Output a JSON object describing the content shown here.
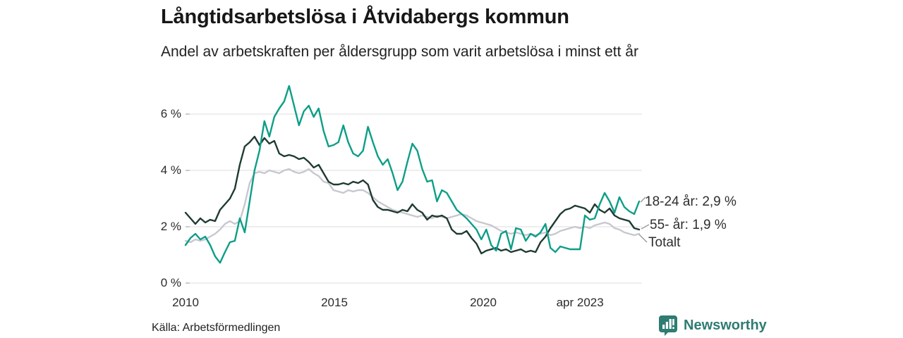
{
  "header": {
    "title": "Långtidsarbetslösa i Åtvidabergs kommun",
    "subtitle": "Andel av arbetskraften per åldersgrupp som varit arbetslösa i minst ett år"
  },
  "footer": {
    "source": "Källa: Arbetsförmedlingen",
    "brand": "Newsworthy"
  },
  "colors": {
    "teal": "#0d9e87",
    "dark": "#1e3a30",
    "gray": "#c7c7cf",
    "brand": "#2e7c72",
    "grid": "#e3e3e3",
    "grid_tick": "#b5b5b5",
    "leader": "#9a9a9a",
    "text": "#2b2b2b"
  },
  "chart_data": {
    "type": "line",
    "title": "Långtidsarbetslösa i Åtvidabergs kommun",
    "subtitle": "Andel av arbetskraften per åldersgrupp som varit arbetslösa i minst ett år",
    "xlabel": "",
    "ylabel": "",
    "x_start": 2008.0,
    "x_step_years": 0.1667,
    "x_end": 2023.33,
    "x_tick_positions": [
      2010,
      2015,
      2020,
      2023.25
    ],
    "x_tick_labels": [
      "2010",
      "2015",
      "2020",
      "apr 2023"
    ],
    "y_ticks": [
      0,
      2,
      4,
      6
    ],
    "y_tick_labels": [
      "0 %",
      "2 %",
      "4 %",
      "6 %"
    ],
    "ylim": [
      0,
      7.3
    ],
    "grid": "horizontal",
    "legend_position": "right-of-line-ends",
    "series": [
      {
        "name": "18-24 år",
        "end_label": "18-24 år: 2,9 %",
        "end_value": 2.9,
        "color_key": "teal",
        "values": [
          1.35,
          1.6,
          1.75,
          1.55,
          1.65,
          1.35,
          0.95,
          0.72,
          1.1,
          1.45,
          1.5,
          2.3,
          1.8,
          2.9,
          4.0,
          4.7,
          5.75,
          5.2,
          5.9,
          6.2,
          6.45,
          7.0,
          6.3,
          5.6,
          6.1,
          6.3,
          5.9,
          6.2,
          5.4,
          4.85,
          4.9,
          5.0,
          5.6,
          5.0,
          4.6,
          4.5,
          4.7,
          5.55,
          5.0,
          4.5,
          4.2,
          4.4,
          3.9,
          3.3,
          3.6,
          4.3,
          4.95,
          4.7,
          4.05,
          3.6,
          3.65,
          2.9,
          3.3,
          3.2,
          2.9,
          2.6,
          2.45,
          2.3,
          2.1,
          1.9,
          1.55,
          1.9,
          1.35,
          1.15,
          1.75,
          1.85,
          1.2,
          1.95,
          1.9,
          1.5,
          1.75,
          1.65,
          1.8,
          2.1,
          1.25,
          1.1,
          1.3,
          1.25,
          1.2,
          1.2,
          1.2,
          2.4,
          2.25,
          2.3,
          2.8,
          3.2,
          2.9,
          2.5,
          3.05,
          2.7,
          2.55,
          2.45,
          2.9
        ]
      },
      {
        "name": "55- år",
        "end_label": "55- år: 1,9 %",
        "end_value": 1.9,
        "color_key": "dark",
        "values": [
          2.5,
          2.3,
          2.1,
          2.3,
          2.15,
          2.25,
          2.2,
          2.6,
          2.8,
          3.0,
          3.35,
          4.2,
          4.85,
          5.0,
          5.2,
          4.9,
          5.15,
          4.95,
          5.05,
          4.6,
          4.5,
          4.55,
          4.5,
          4.4,
          4.45,
          4.3,
          4.1,
          4.2,
          3.9,
          3.6,
          3.5,
          3.5,
          3.55,
          3.5,
          3.6,
          3.55,
          3.65,
          3.5,
          2.95,
          2.7,
          2.6,
          2.6,
          2.55,
          2.5,
          2.6,
          2.55,
          2.8,
          2.6,
          2.5,
          2.25,
          2.4,
          2.35,
          2.4,
          2.3,
          1.9,
          1.75,
          1.75,
          1.85,
          1.6,
          1.4,
          1.05,
          1.15,
          1.2,
          1.25,
          1.15,
          1.2,
          1.1,
          1.15,
          1.2,
          1.1,
          1.15,
          1.1,
          1.45,
          1.65,
          1.95,
          2.2,
          2.45,
          2.6,
          2.65,
          2.75,
          2.7,
          2.65,
          2.5,
          2.8,
          2.6,
          2.5,
          2.65,
          2.4,
          2.3,
          2.25,
          2.2,
          1.95,
          1.9
        ]
      },
      {
        "name": "Totalt",
        "end_label": "Totalt",
        "end_value": 1.75,
        "color_key": "gray",
        "values": [
          1.5,
          1.45,
          1.55,
          1.5,
          1.55,
          1.65,
          1.75,
          1.9,
          2.1,
          2.2,
          2.1,
          2.2,
          2.8,
          3.55,
          3.9,
          3.95,
          3.9,
          4.0,
          3.95,
          3.9,
          4.0,
          4.05,
          3.95,
          3.9,
          3.95,
          4.05,
          3.9,
          3.8,
          3.6,
          3.55,
          3.3,
          3.25,
          3.2,
          3.3,
          3.25,
          3.3,
          3.3,
          3.2,
          3.05,
          2.9,
          2.8,
          2.7,
          2.6,
          2.55,
          2.5,
          2.45,
          2.4,
          2.35,
          2.4,
          2.35,
          2.3,
          2.4,
          2.35,
          2.3,
          2.35,
          2.4,
          2.45,
          2.4,
          2.3,
          2.2,
          2.15,
          2.1,
          2.05,
          1.95,
          1.85,
          1.8,
          1.75,
          1.8,
          1.75,
          1.7,
          1.75,
          1.7,
          1.75,
          1.8,
          1.7,
          1.75,
          1.85,
          1.9,
          1.95,
          2.0,
          1.95,
          2.0,
          1.95,
          2.05,
          2.1,
          2.15,
          2.1,
          1.95,
          1.9,
          1.8,
          1.75,
          1.7,
          1.75
        ]
      }
    ]
  }
}
